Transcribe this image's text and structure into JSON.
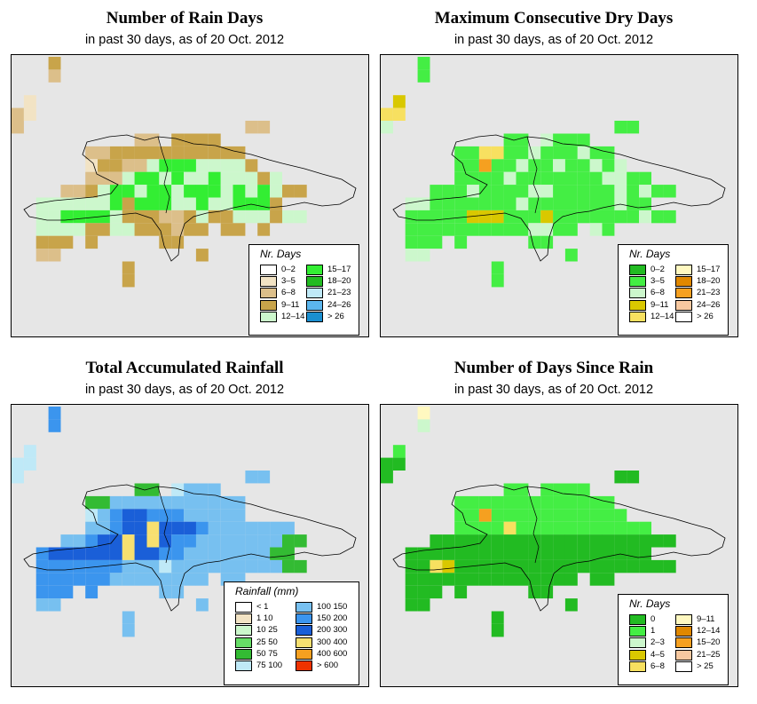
{
  "subtitle": "in past 30 days, as of  20 Oct. 2012",
  "panels": [
    {
      "title": "Number of Rain Days",
      "legend_title": "Nr. Days",
      "legend": [
        {
          "label": "0–2",
          "color": "#ffffff"
        },
        {
          "label": "3–5",
          "color": "#f2e3c4"
        },
        {
          "label": "6–8",
          "color": "#dcbf8a"
        },
        {
          "label": "9–11",
          "color": "#c8a44a"
        },
        {
          "label": "12–14",
          "color": "#ccf7cc"
        },
        {
          "label": "15–17",
          "color": "#33ee33"
        },
        {
          "label": "18–20",
          "color": "#22bb22"
        },
        {
          "label": "21–23",
          "color": "#bfe9f7"
        },
        {
          "label": "24–26",
          "color": "#5bb6ee"
        },
        {
          "label": "> 26",
          "color": "#1a8fd0"
        }
      ]
    },
    {
      "title": "Maximum Consecutive Dry Days",
      "legend_title": "Nr. Days",
      "legend": [
        {
          "label": "0–2",
          "color": "#22bb22"
        },
        {
          "label": "3–5",
          "color": "#44ee44"
        },
        {
          "label": "6–8",
          "color": "#ccf7cc"
        },
        {
          "label": "9–11",
          "color": "#d9c800"
        },
        {
          "label": "12–14",
          "color": "#f7e060"
        },
        {
          "label": "15–17",
          "color": "#fff8c0"
        },
        {
          "label": "18–20",
          "color": "#e08800"
        },
        {
          "label": "21–23",
          "color": "#f5a020"
        },
        {
          "label": "24–26",
          "color": "#f7c8a0"
        },
        {
          "label": "> 26",
          "color": "#ffffff"
        }
      ]
    },
    {
      "title": "Total Accumulated Rainfall",
      "legend_title": "Rainfall (mm)",
      "legend": [
        {
          "label": "< 1",
          "color": "#ffffff"
        },
        {
          "label": "1    10",
          "color": "#f2e3c4"
        },
        {
          "label": "10    25",
          "color": "#ccf7cc"
        },
        {
          "label": "25    50",
          "color": "#66dd66"
        },
        {
          "label": "50    75",
          "color": "#33bb33"
        },
        {
          "label": "75    100",
          "color": "#bfe9f7"
        },
        {
          "label": "100   150",
          "color": "#77c0f0"
        },
        {
          "label": "150   200",
          "color": "#3b95ee"
        },
        {
          "label": "200   300",
          "color": "#1a5fd8"
        },
        {
          "label": "300   400",
          "color": "#f7e070"
        },
        {
          "label": "400   600",
          "color": "#f5a020"
        },
        {
          "label": "> 600",
          "color": "#ee3300"
        }
      ]
    },
    {
      "title": "Number of Days Since Rain",
      "legend_title": "Nr. Days",
      "legend": [
        {
          "label": "0",
          "color": "#22bb22"
        },
        {
          "label": "1",
          "color": "#44ee44"
        },
        {
          "label": "2–3",
          "color": "#ccf7cc"
        },
        {
          "label": "4–5",
          "color": "#d9c800"
        },
        {
          "label": "6–8",
          "color": "#f7e060"
        },
        {
          "label": "9–11",
          "color": "#fff8c0"
        },
        {
          "label": "12–14",
          "color": "#e08800"
        },
        {
          "label": "15–20",
          "color": "#f5a020"
        },
        {
          "label": "21–25",
          "color": "#f7c8a0"
        },
        {
          "label": "> 25",
          "color": "#ffffff"
        }
      ]
    }
  ]
}
